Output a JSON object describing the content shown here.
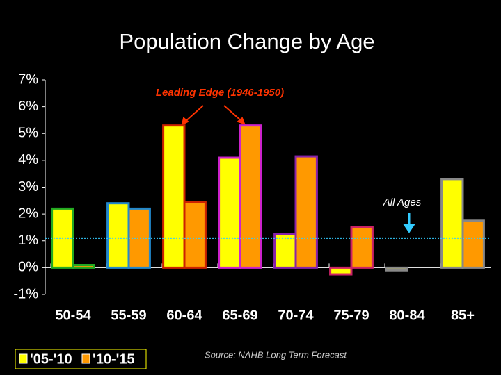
{
  "chart_data": {
    "type": "bar",
    "title": "Population Change by Age",
    "categories": [
      "50-54",
      "55-59",
      "60-64",
      "65-69",
      "70-74",
      "75-79",
      "80-84",
      "85+"
    ],
    "series": [
      {
        "name": "'05-'10",
        "color": "#ffff00",
        "values": [
          2.2,
          2.4,
          5.3,
          4.1,
          1.25,
          -0.25,
          -0.1,
          3.3
        ]
      },
      {
        "name": "'10-'15",
        "color": "#ff9900",
        "values": [
          0.1,
          2.2,
          2.45,
          5.3,
          4.15,
          1.5,
          0,
          1.75
        ]
      }
    ],
    "edge_colors": [
      "#22aa22",
      "#2288cc",
      "#cc2200",
      "#cc22cc",
      "#8822aa",
      "#cc2266",
      "#888888",
      "#888888"
    ],
    "ylim": [
      -1,
      7
    ],
    "yticks": [
      {
        "value": -1,
        "label": "-1%"
      },
      {
        "value": 0,
        "label": "0%"
      },
      {
        "value": 1,
        "label": "1%"
      },
      {
        "value": 2,
        "label": "2%"
      },
      {
        "value": 3,
        "label": "3%"
      },
      {
        "value": 4,
        "label": "4%"
      },
      {
        "value": 5,
        "label": "5%"
      },
      {
        "value": 6,
        "label": "6%"
      },
      {
        "value": 7,
        "label": "7%"
      }
    ],
    "reference_line": {
      "value": 1.1,
      "label": "All Ages",
      "color": "#33ccff"
    },
    "annotation": "Leading Edge (1946-1950)",
    "source": "Source: NAHB Long Term Forecast"
  }
}
